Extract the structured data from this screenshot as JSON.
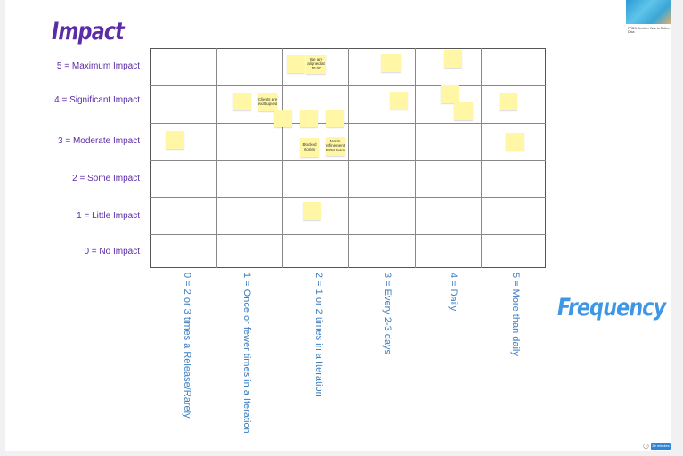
{
  "titles": {
    "impact": "Impact",
    "frequency": "Frequency"
  },
  "impact_levels": [
    "5 = Maximum Impact",
    "4 = Significant Impact",
    "3 = Moderate Impact",
    "2 = Some Impact",
    "1 = Little Impact",
    "0 = No Impact"
  ],
  "frequency_levels": [
    "0 = 2 or 3 times a Release/Rarely",
    "1 = Once or fewer times in a Iteration",
    "2 = 1 or 2 times in a Iteration",
    "3 = Every 2-3 days",
    "4 = Daily",
    "5 = More than daily"
  ],
  "stickies": [
    {
      "text": "",
      "size": "small"
    },
    {
      "text": "We are aligned at 10:00",
      "size": "big"
    },
    {
      "text": "",
      "size": "small"
    },
    {
      "text": "",
      "size": "small"
    },
    {
      "text": "",
      "size": "small"
    },
    {
      "text": "Clients are exaltupsed",
      "size": "big"
    },
    {
      "text": "",
      "size": "small"
    },
    {
      "text": "",
      "size": "small"
    },
    {
      "text": "",
      "size": "small"
    },
    {
      "text": "",
      "size": "small"
    },
    {
      "text": "",
      "size": "small"
    },
    {
      "text": "",
      "size": "small"
    },
    {
      "text": "",
      "size": "small"
    },
    {
      "text": "",
      "size": "small"
    },
    {
      "text": "Blocked stories",
      "size": "big"
    },
    {
      "text": "Not in refinement BRM team",
      "size": "big"
    },
    {
      "text": "",
      "size": "small"
    },
    {
      "text": "",
      "size": "small"
    }
  ],
  "thumbnail": {
    "line1": "PRBG: Another Way to Gather Data"
  },
  "badge": {
    "label": "30 minutes"
  },
  "colors": {
    "impact_purple": "#5b2ca4",
    "frequency_blue": "#3d96e6",
    "sticky_yellow": "#fff7a6"
  }
}
